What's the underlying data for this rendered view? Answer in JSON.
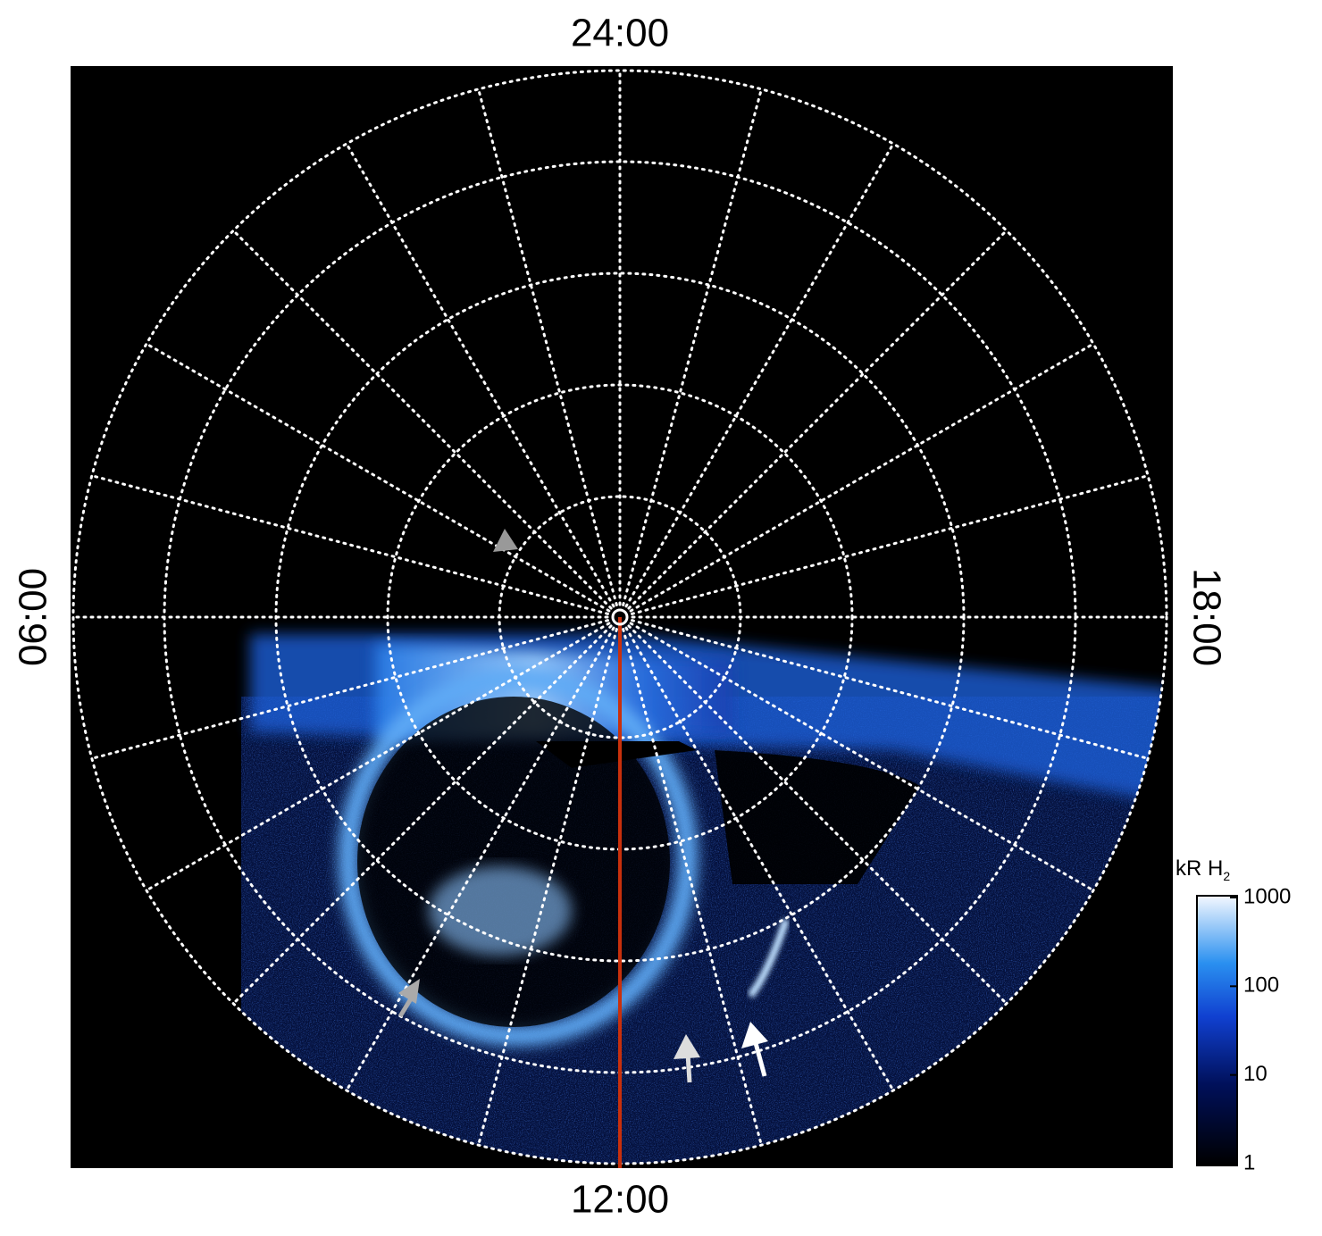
{
  "hour_labels": {
    "top": "24:00",
    "bottom": "12:00",
    "left": "06:00",
    "right": "18:00"
  },
  "colorbar": {
    "title": "kR H",
    "title_subscript": "2",
    "scale": "log",
    "lim": [
      1,
      1000
    ],
    "ticks": [
      1,
      10,
      100,
      1000
    ]
  }
}
